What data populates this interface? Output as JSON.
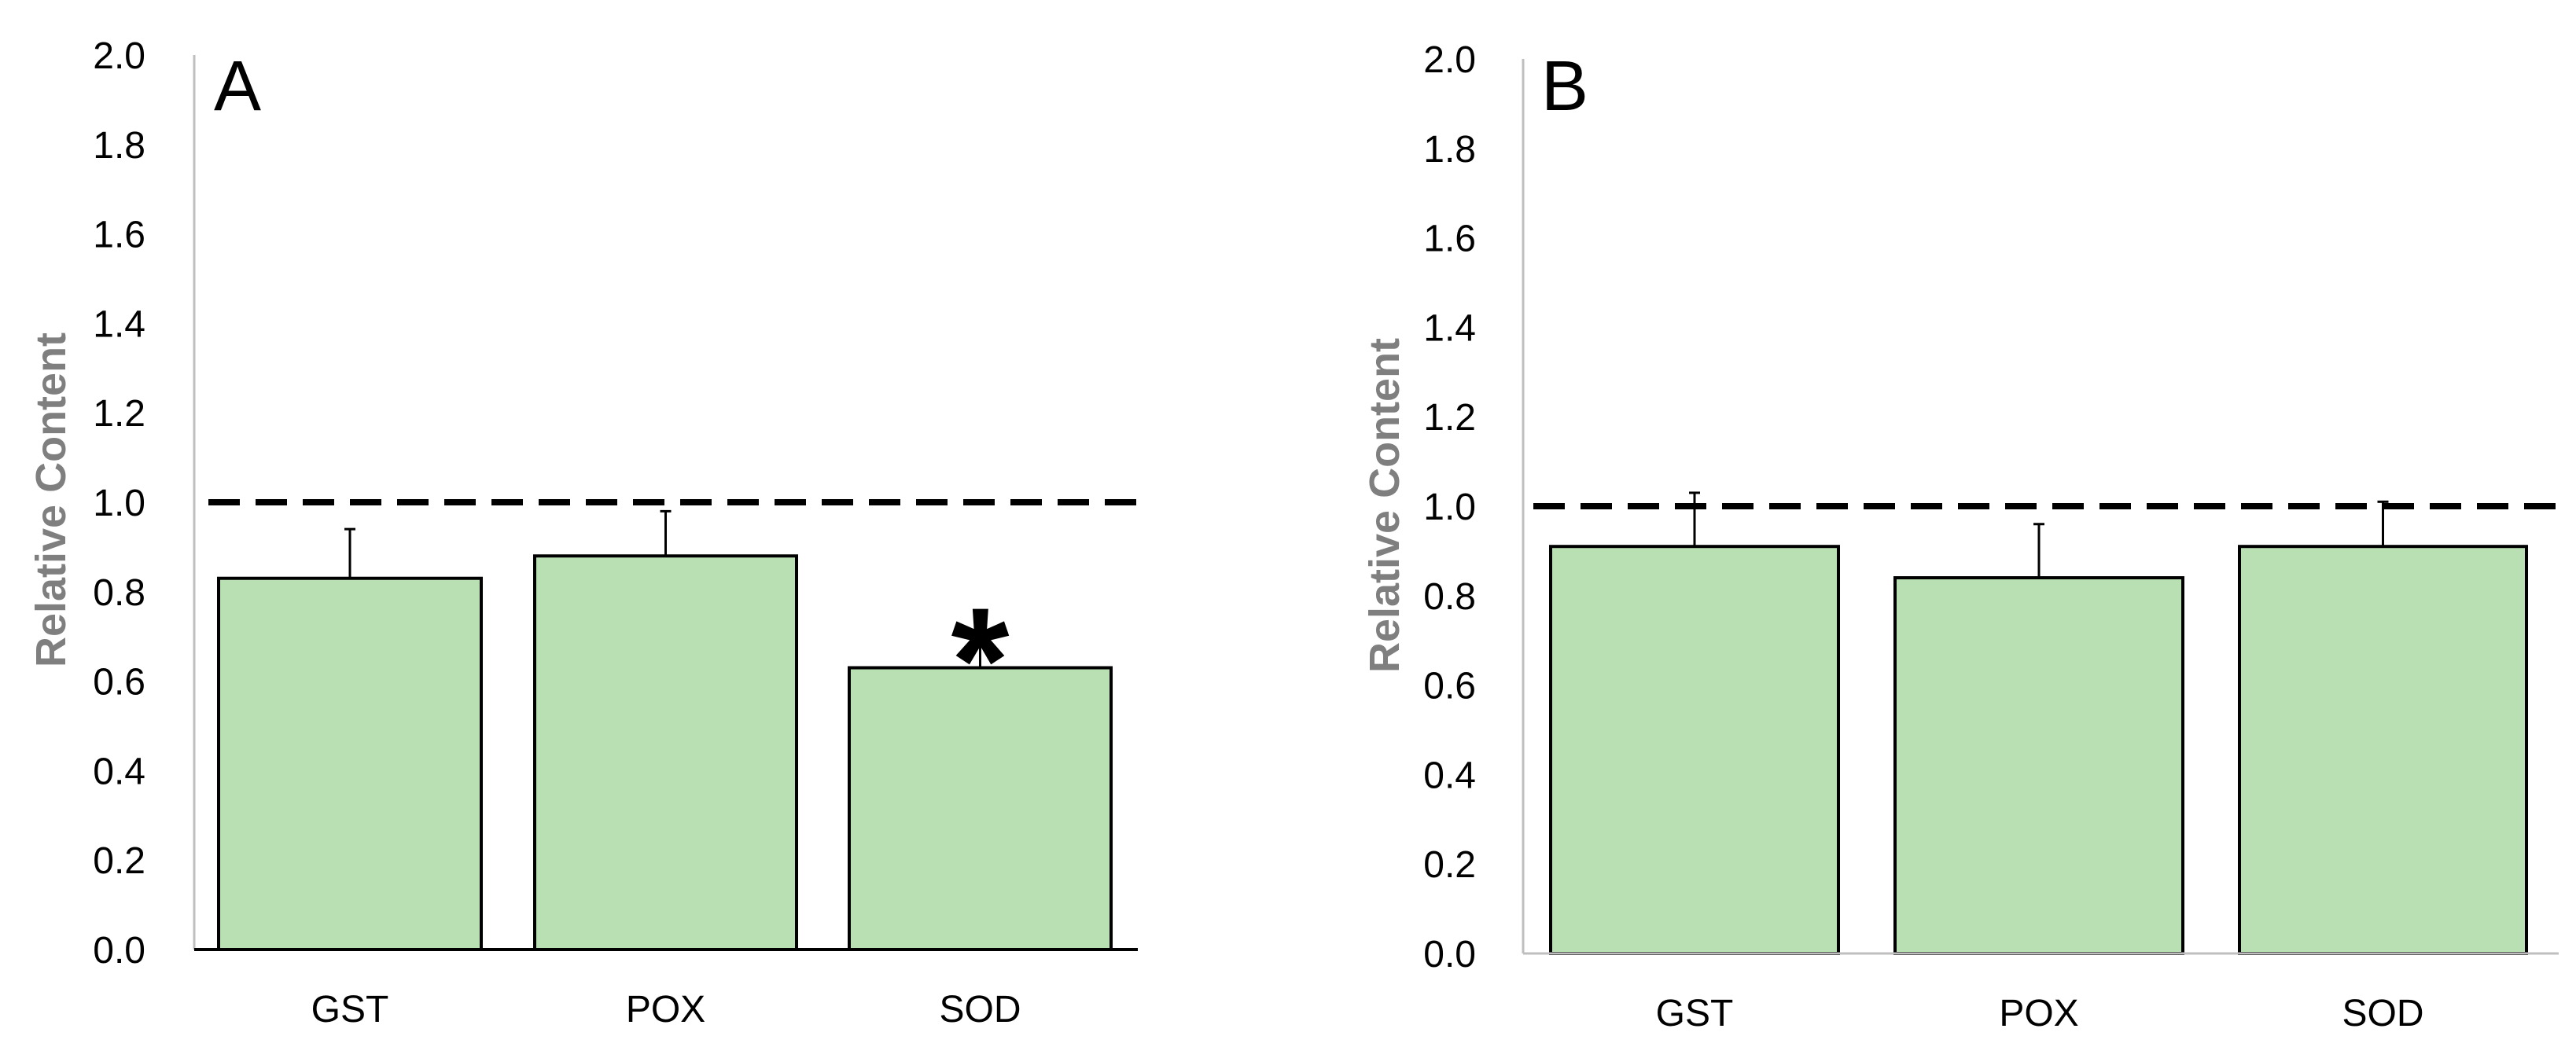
{
  "chart_data": [
    {
      "type": "bar",
      "panel_label": "A",
      "categories": [
        "GST",
        "POX",
        "SOD"
      ],
      "values": [
        0.83,
        0.88,
        0.63
      ],
      "errors": [
        0.11,
        0.1,
        0.06
      ],
      "annotations": [
        "",
        "",
        "*"
      ],
      "ylabel": "Relative Content",
      "xlabel": "",
      "ylim": [
        0,
        2.0
      ],
      "yticks": [
        "0.0",
        "0.2",
        "0.4",
        "0.6",
        "0.8",
        "1.0",
        "1.2",
        "1.4",
        "1.6",
        "1.8",
        "2.0"
      ],
      "reference_line": 1.0,
      "bar_color": "#b9e0b2",
      "grid": false
    },
    {
      "type": "bar",
      "panel_label": "B",
      "categories": [
        "GST",
        "POX",
        "SOD"
      ],
      "values": [
        0.91,
        0.84,
        0.91
      ],
      "errors": [
        0.12,
        0.12,
        0.1
      ],
      "annotations": [
        "",
        "",
        ""
      ],
      "ylabel": "Relative Content",
      "xlabel": "",
      "ylim": [
        0,
        2.0
      ],
      "yticks": [
        "0.0",
        "0.2",
        "0.4",
        "0.6",
        "0.8",
        "1.0",
        "1.2",
        "1.4",
        "1.6",
        "1.8",
        "2.0"
      ],
      "reference_line": 1.0,
      "bar_color": "#b9e0b2",
      "grid": false
    }
  ]
}
